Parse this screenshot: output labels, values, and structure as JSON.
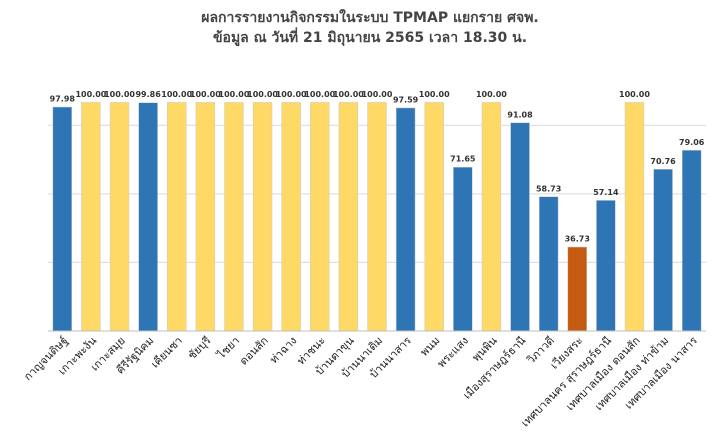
{
  "chart_data": {
    "type": "bar",
    "title": "ผลการรายงานกิจกรรมในระบบ TPMAP แยกราย ศจพ.",
    "subtitle": "ข้อมูล ณ วันที่ 21 มิถุนายน 2565  เวลา 18.30 น.",
    "categories": [
      "กาญจนดิษฐ์",
      "เกาะพะงัน",
      "เกาะสมุย",
      "คีรีรัฐนิคม",
      "เคียนซา",
      "ชัยบุรี",
      "ไชยา",
      "ดอนสัก",
      "ท่าฉาง",
      "ท่าชนะ",
      "บ้านตาขุน",
      "บ้านนาเดิม",
      "บ้านนาสาร",
      "พนม",
      "พระแสง",
      "พุนพิน",
      "เมืองสุราษฎร์ธานี",
      "วิภาวดี",
      "เวียงสระ",
      "เทศบาลนคร สุราษฎร์ธานี",
      "เทศบาลเมือง ดอนสัก",
      "เทศบาลเมือง ท่าข้าม",
      "เทศบาลเมือง นาสาร"
    ],
    "values": [
      97.98,
      100,
      100,
      99.86,
      100,
      100,
      100,
      100,
      100,
      100,
      100,
      100,
      97.59,
      100,
      71.65,
      100,
      91.08,
      58.73,
      36.73,
      57.14,
      100,
      70.76,
      79.06
    ],
    "value_labels": [
      "97.98",
      "100.00",
      "100.00",
      "99.86",
      "100.00",
      "100.00",
      "100.00",
      "100.00",
      "100.00",
      "100.00",
      "100.00",
      "100.00",
      "97.59",
      "100.00",
      "71.65",
      "100.00",
      "91.08",
      "58.73",
      "36.73",
      "57.14",
      "100.00",
      "70.76",
      "79.06"
    ],
    "colors": [
      "#2e75b6",
      "#ffd966",
      "#ffd966",
      "#2e75b6",
      "#ffd966",
      "#ffd966",
      "#ffd966",
      "#ffd966",
      "#ffd966",
      "#ffd966",
      "#ffd966",
      "#ffd966",
      "#2e75b6",
      "#ffd966",
      "#2e75b6",
      "#ffd966",
      "#2e75b6",
      "#2e75b6",
      "#c55a11",
      "#2e75b6",
      "#ffd966",
      "#2e75b6",
      "#2e75b6"
    ],
    "ylim": [
      0,
      112
    ],
    "yticks": [
      0,
      30,
      60,
      90
    ],
    "grid": true
  }
}
